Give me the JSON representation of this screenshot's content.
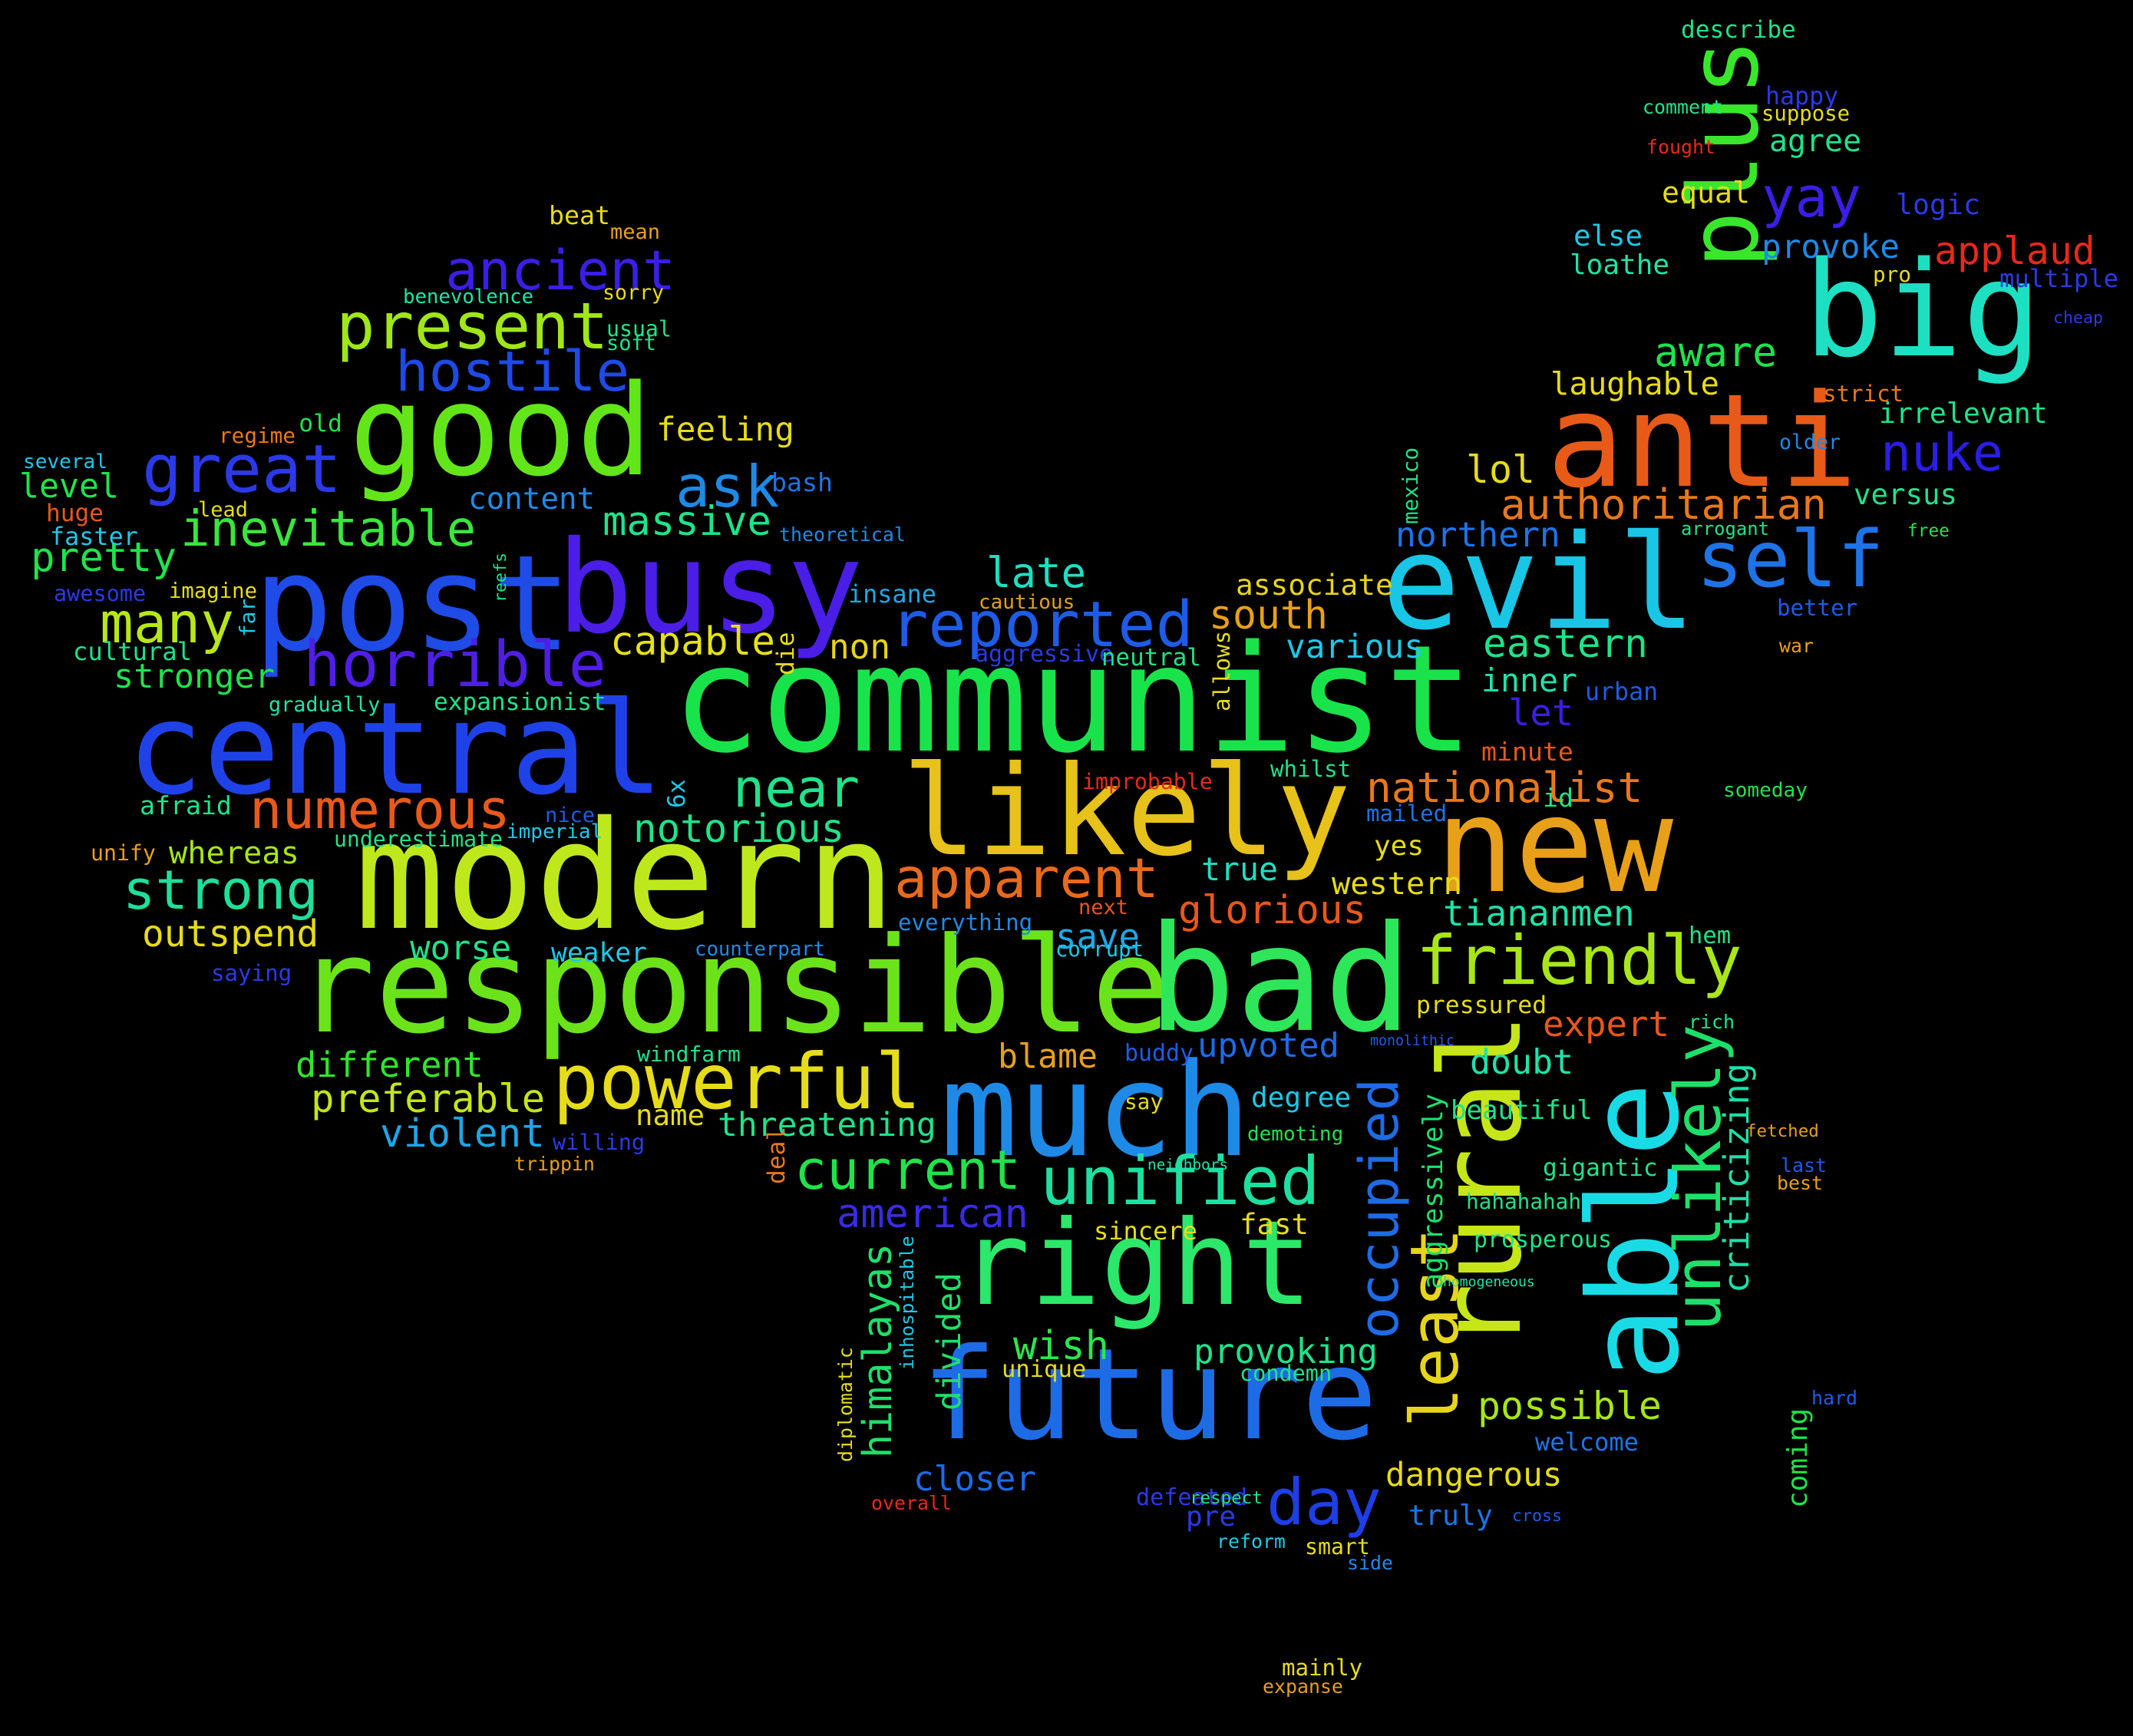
{
  "background": "#000000",
  "words": [
    {
      "text": "communist",
      "color": "#19e34a"
    },
    {
      "text": "modern",
      "color": "#bfe81c"
    },
    {
      "text": "responsible",
      "color": "#6be31a"
    },
    {
      "text": "bad",
      "color": "#2ee65a"
    },
    {
      "text": "busy",
      "color": "#4a1ee6"
    },
    {
      "text": "post",
      "color": "#1f4be6"
    },
    {
      "text": "central",
      "color": "#1f42e8"
    },
    {
      "text": "likely",
      "color": "#e6c21a"
    },
    {
      "text": "good",
      "color": "#63e619"
    },
    {
      "text": "anti",
      "color": "#e85a18"
    },
    {
      "text": "evil",
      "color": "#19c6e6"
    },
    {
      "text": "big",
      "color": "#1de0c3"
    },
    {
      "text": "new",
      "color": "#e8a019"
    },
    {
      "text": "much",
      "color": "#1e8ae6"
    },
    {
      "text": "right",
      "color": "#2be86a"
    },
    {
      "text": "future",
      "color": "#1e6be6"
    },
    {
      "text": "rural",
      "color": "#c6e619"
    },
    {
      "text": "able",
      "color": "#19dbe6"
    },
    {
      "text": "plus",
      "color": "#3ae62c"
    },
    {
      "text": "powerful",
      "color": "#e6dc19"
    },
    {
      "text": "friendly",
      "color": "#a9e619"
    },
    {
      "text": "unified",
      "color": "#1de0a0"
    },
    {
      "text": "self",
      "color": "#1e74e6"
    },
    {
      "text": "reported",
      "color": "#1e5ce6"
    },
    {
      "text": "great",
      "color": "#2a3ae6"
    },
    {
      "text": "horrible",
      "color": "#4f1ee6"
    },
    {
      "text": "present",
      "color": "#a0e619"
    },
    {
      "text": "ancient",
      "color": "#3b1ee6"
    },
    {
      "text": "hostile",
      "color": "#1e4ae6"
    },
    {
      "text": "inevitable",
      "color": "#3ae63c"
    },
    {
      "text": "numerous",
      "color": "#e85a1b"
    },
    {
      "text": "apparent",
      "color": "#e86a1b"
    },
    {
      "text": "strong",
      "color": "#1de09a"
    },
    {
      "text": "many",
      "color": "#b8e619"
    },
    {
      "text": "ask",
      "color": "#1e8ae6"
    },
    {
      "text": "current",
      "color": "#1fe34c"
    },
    {
      "text": "different",
      "color": "#2fe62a"
    },
    {
      "text": "preferable",
      "color": "#c2e619"
    },
    {
      "text": "violent",
      "color": "#1ea6e6"
    },
    {
      "text": "american",
      "color": "#3b2ae6"
    },
    {
      "text": "day",
      "color": "#1e3ee6"
    },
    {
      "text": "occupied",
      "color": "#1e6be6"
    },
    {
      "text": "unlikely",
      "color": "#1de06a"
    },
    {
      "text": "criticizing",
      "color": "#1de0a8"
    },
    {
      "text": "least",
      "color": "#e6d51a"
    },
    {
      "text": "possible",
      "color": "#a6e619"
    },
    {
      "text": "provoking",
      "color": "#1fe38a"
    },
    {
      "text": "dangerous",
      "color": "#e6dc19"
    },
    {
      "text": "closer",
      "color": "#1e6be6"
    },
    {
      "text": "himalayas",
      "color": "#1de06a"
    },
    {
      "text": "wish",
      "color": "#2be64c"
    },
    {
      "text": "divided",
      "color": "#1de06a"
    },
    {
      "text": "authoritarian",
      "color": "#e8781b"
    },
    {
      "text": "nuke",
      "color": "#2a1ee6"
    },
    {
      "text": "yay",
      "color": "#3b1ee6"
    },
    {
      "text": "lol",
      "color": "#e6dc19"
    },
    {
      "text": "northern",
      "color": "#1e74e6"
    },
    {
      "text": "eastern",
      "color": "#1fe38a"
    },
    {
      "text": "south",
      "color": "#e6a019"
    },
    {
      "text": "associate",
      "color": "#e6d519"
    },
    {
      "text": "various",
      "color": "#1ec8e6"
    },
    {
      "text": "late",
      "color": "#1de0c3"
    },
    {
      "text": "capable",
      "color": "#e6e119"
    },
    {
      "text": "non",
      "color": "#e6d519"
    },
    {
      "text": "near",
      "color": "#1fe38a"
    },
    {
      "text": "notorious",
      "color": "#1fe38a"
    },
    {
      "text": "massive",
      "color": "#1fe38a"
    },
    {
      "text": "feeling",
      "color": "#e6dc19"
    },
    {
      "text": "content",
      "color": "#1e8ae6"
    },
    {
      "text": "nationalist",
      "color": "#e8781b"
    },
    {
      "text": "tiananmen",
      "color": "#1fe3a8"
    },
    {
      "text": "glorious",
      "color": "#e8571b"
    },
    {
      "text": "true",
      "color": "#1de0c3"
    },
    {
      "text": "yes",
      "color": "#e6dc19"
    },
    {
      "text": "western",
      "color": "#e6dc19"
    },
    {
      "text": "save",
      "color": "#1ea8e6"
    },
    {
      "text": "upvoted",
      "color": "#1e6be6"
    },
    {
      "text": "blame",
      "color": "#e6a019"
    },
    {
      "text": "degree",
      "color": "#1ec8e6"
    },
    {
      "text": "say",
      "color": "#e6dc19"
    },
    {
      "text": "sincere",
      "color": "#e6dc19"
    },
    {
      "text": "fast",
      "color": "#e6dc19"
    },
    {
      "text": "expert",
      "color": "#e8571b"
    },
    {
      "text": "doubt",
      "color": "#1fe3a8"
    },
    {
      "text": "pressured",
      "color": "#e6dc19"
    },
    {
      "text": "beautiful",
      "color": "#1fe38a"
    },
    {
      "text": "gigantic",
      "color": "#1fe38a"
    },
    {
      "text": "hahahahah",
      "color": "#1fe38a"
    },
    {
      "text": "prosperous",
      "color": "#1fe38a"
    },
    {
      "text": "homogeneous",
      "color": "#1fe3a8"
    },
    {
      "text": "aggressively",
      "color": "#1de06a"
    },
    {
      "text": "welcome",
      "color": "#1e74e6"
    },
    {
      "text": "truly",
      "color": "#1e74e6"
    },
    {
      "text": "cross",
      "color": "#1e5ce6"
    },
    {
      "text": "defeated",
      "color": "#2a3ae6"
    },
    {
      "text": "pre",
      "color": "#2a3ae6"
    },
    {
      "text": "reform",
      "color": "#1ec8e6"
    },
    {
      "text": "respect",
      "color": "#1fe38a"
    },
    {
      "text": "smart",
      "color": "#e6dc19"
    },
    {
      "text": "side",
      "color": "#1e8ae6"
    },
    {
      "text": "condemn",
      "color": "#1fe38a"
    },
    {
      "text": "unique",
      "color": "#e6dc19"
    },
    {
      "text": "everything",
      "color": "#1e8ae6"
    },
    {
      "text": "counterpart",
      "color": "#1e8ae6"
    },
    {
      "text": "weaker",
      "color": "#1ec8e6"
    },
    {
      "text": "worse",
      "color": "#1fe38a"
    },
    {
      "text": "name",
      "color": "#e6dc19"
    },
    {
      "text": "threatening",
      "color": "#1fe38a"
    },
    {
      "text": "outspend",
      "color": "#e6dc19"
    },
    {
      "text": "whereas",
      "color": "#a6e619"
    },
    {
      "text": "afraid",
      "color": "#1fe38a"
    },
    {
      "text": "underestimate",
      "color": "#1fe38a"
    },
    {
      "text": "imperial",
      "color": "#1ec8e6"
    },
    {
      "text": "nice",
      "color": "#1e5ce6"
    },
    {
      "text": "stronger",
      "color": "#1fe34c"
    },
    {
      "text": "expansionist",
      "color": "#1fe38a"
    },
    {
      "text": "level",
      "color": "#1fe34c"
    },
    {
      "text": "pretty",
      "color": "#1fe34c"
    },
    {
      "text": "huge",
      "color": "#e8571b"
    },
    {
      "text": "faster",
      "color": "#1ec8e6"
    },
    {
      "text": "awesome",
      "color": "#2a3ae6"
    },
    {
      "text": "imagine",
      "color": "#e6dc19"
    },
    {
      "text": "cultural",
      "color": "#1fe38a"
    },
    {
      "text": "gradually",
      "color": "#1fe3a8"
    },
    {
      "text": "lead",
      "color": "#e6dc19"
    },
    {
      "text": "several",
      "color": "#1ec8e6"
    },
    {
      "text": "regime",
      "color": "#e8781b"
    },
    {
      "text": "old",
      "color": "#1fe34c"
    },
    {
      "text": "beat",
      "color": "#e6dc19"
    },
    {
      "text": "mean",
      "color": "#e6a019"
    },
    {
      "text": "benevolence",
      "color": "#1fe3a8"
    },
    {
      "text": "sorry",
      "color": "#e6dc19"
    },
    {
      "text": "usual",
      "color": "#1fe38a"
    },
    {
      "text": "soft",
      "color": "#1fe38a"
    },
    {
      "text": "bash",
      "color": "#1e74e6"
    },
    {
      "text": "theoretical",
      "color": "#1e8ae6"
    },
    {
      "text": "insane",
      "color": "#1ea8e6"
    },
    {
      "text": "cautious",
      "color": "#e6a019"
    },
    {
      "text": "aggressive",
      "color": "#2a3ae6"
    },
    {
      "text": "neutral",
      "color": "#1fe38a"
    },
    {
      "text": "let",
      "color": "#3b1ee6"
    },
    {
      "text": "inner",
      "color": "#1fe3a8"
    },
    {
      "text": "urban",
      "color": "#1e5ce6"
    },
    {
      "text": "minute",
      "color": "#e8571b"
    },
    {
      "text": "improbable",
      "color": "#e8281b"
    },
    {
      "text": "whilst",
      "color": "#1fe38a"
    },
    {
      "text": "mailed",
      "color": "#1e74e6"
    },
    {
      "text": "id",
      "color": "#1fe38a"
    },
    {
      "text": "someday",
      "color": "#1fe34c"
    },
    {
      "text": "next",
      "color": "#e8571b"
    },
    {
      "text": "corrupt",
      "color": "#1ec8e6"
    },
    {
      "text": "hem",
      "color": "#1fe38a"
    },
    {
      "text": "rich",
      "color": "#1fe38a"
    },
    {
      "text": "monolithic",
      "color": "#1e5ce6"
    },
    {
      "text": "buddy",
      "color": "#1e5ce6"
    },
    {
      "text": "demoting",
      "color": "#1fe34c"
    },
    {
      "text": "neighbors",
      "color": "#1fe3a8"
    },
    {
      "text": "fetched",
      "color": "#e6a019"
    },
    {
      "text": "last",
      "color": "#1e5ce6"
    },
    {
      "text": "best",
      "color": "#e6a019"
    },
    {
      "text": "hard",
      "color": "#1e5ce6"
    },
    {
      "text": "coming",
      "color": "#1fe34c"
    },
    {
      "text": "describe",
      "color": "#1fe38a"
    },
    {
      "text": "comment",
      "color": "#1fe38a"
    },
    {
      "text": "happy",
      "color": "#2a3ae6"
    },
    {
      "text": "suppose",
      "color": "#e6dc19"
    },
    {
      "text": "fought",
      "color": "#e8281b"
    },
    {
      "text": "agree",
      "color": "#1fe38a"
    },
    {
      "text": "equal",
      "color": "#e6dc19"
    },
    {
      "text": "logic",
      "color": "#2a3ae6"
    },
    {
      "text": "else",
      "color": "#1ec8e6"
    },
    {
      "text": "provoke",
      "color": "#1e8ae6"
    },
    {
      "text": "loathe",
      "color": "#1fe3a8"
    },
    {
      "text": "applaud",
      "color": "#e8281b"
    },
    {
      "text": "pro",
      "color": "#e6dc19"
    },
    {
      "text": "multiple",
      "color": "#2a3ae6"
    },
    {
      "text": "cheap",
      "color": "#2a3ae6"
    },
    {
      "text": "aware",
      "color": "#1fe34c"
    },
    {
      "text": "laughable",
      "color": "#e6dc19"
    },
    {
      "text": "strict",
      "color": "#e8781b"
    },
    {
      "text": "irrelevant",
      "color": "#1fe38a"
    },
    {
      "text": "older",
      "color": "#1e8ae6"
    },
    {
      "text": "versus",
      "color": "#1fe38a"
    },
    {
      "text": "arrogant",
      "color": "#1fe38a"
    },
    {
      "text": "free",
      "color": "#1fe34c"
    },
    {
      "text": "better",
      "color": "#1e5ce6"
    },
    {
      "text": "war",
      "color": "#e6a019"
    },
    {
      "text": "mexico",
      "color": "#1fe38a"
    },
    {
      "text": "allows",
      "color": "#e6dc19"
    },
    {
      "text": "reefs",
      "color": "#1fe38a"
    },
    {
      "text": "die",
      "color": "#e6dc19"
    },
    {
      "text": "far",
      "color": "#1ec8e6"
    },
    {
      "text": "6x",
      "color": "#1ec8e6"
    },
    {
      "text": "unify",
      "color": "#e6a019"
    },
    {
      "text": "saying",
      "color": "#2a3ae6"
    },
    {
      "text": "windfarm",
      "color": "#1fe38a"
    },
    {
      "text": "willing",
      "color": "#2a3ae6"
    },
    {
      "text": "trippin",
      "color": "#e6a019"
    },
    {
      "text": "deal",
      "color": "#e8781b"
    },
    {
      "text": "diplomatic",
      "color": "#e6dc19"
    },
    {
      "text": "inhospitable",
      "color": "#1ec8e6"
    },
    {
      "text": "overall",
      "color": "#e8281b"
    },
    {
      "text": "mainly",
      "color": "#e6dc19"
    },
    {
      "text": "expanse",
      "color": "#e6a019"
    }
  ]
}
